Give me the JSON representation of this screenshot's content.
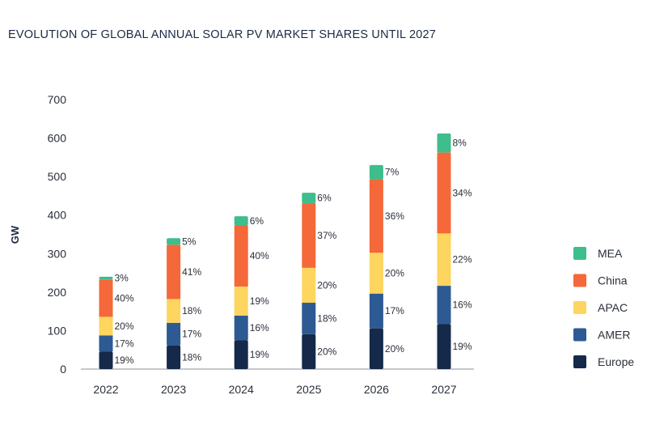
{
  "chart_data": {
    "type": "bar",
    "stacked": true,
    "title": "EVOLUTION OF GLOBAL ANNUAL SOLAR PV MARKET SHARES UNTIL 2027",
    "xlabel": "",
    "ylabel": "GW",
    "ylim": [
      0,
      700
    ],
    "yticks": [
      "0",
      "100",
      "200",
      "300",
      "400",
      "500",
      "600",
      "700"
    ],
    "grid": false,
    "legend_position": "right",
    "categories": [
      "2022",
      "2023",
      "2024",
      "2025",
      "2026",
      "2027"
    ],
    "totals": [
      240,
      340,
      397,
      458,
      530,
      612
    ],
    "series": [
      {
        "name": "Europe",
        "color": "#152a4a",
        "shares": [
          19,
          18,
          19,
          20,
          20,
          19
        ],
        "labels": [
          "19%",
          "18%",
          "19%",
          "20%",
          "20%",
          "19%"
        ]
      },
      {
        "name": "AMER",
        "color": "#2e5a93",
        "shares": [
          17,
          17,
          16,
          18,
          17,
          16
        ],
        "labels": [
          "17%",
          "17%",
          "16%",
          "18%",
          "17%",
          "16%"
        ]
      },
      {
        "name": "APAC",
        "color": "#fdd55f",
        "shares": [
          20,
          18,
          19,
          20,
          20,
          22
        ],
        "labels": [
          "20%",
          "18%",
          "19%",
          "20%",
          "20%",
          "22%"
        ]
      },
      {
        "name": "China",
        "color": "#f4683a",
        "shares": [
          40,
          41,
          40,
          37,
          36,
          34
        ],
        "labels": [
          "40%",
          "41%",
          "40%",
          "37%",
          "36%",
          "34%"
        ]
      },
      {
        "name": "MEA",
        "color": "#3dbe8c",
        "shares": [
          3,
          5,
          6,
          6,
          7,
          8
        ],
        "labels": [
          "3%",
          "5%",
          "6%",
          "6%",
          "7%",
          "8%"
        ]
      }
    ],
    "legend_order": [
      "MEA",
      "China",
      "APAC",
      "AMER",
      "Europe"
    ]
  }
}
